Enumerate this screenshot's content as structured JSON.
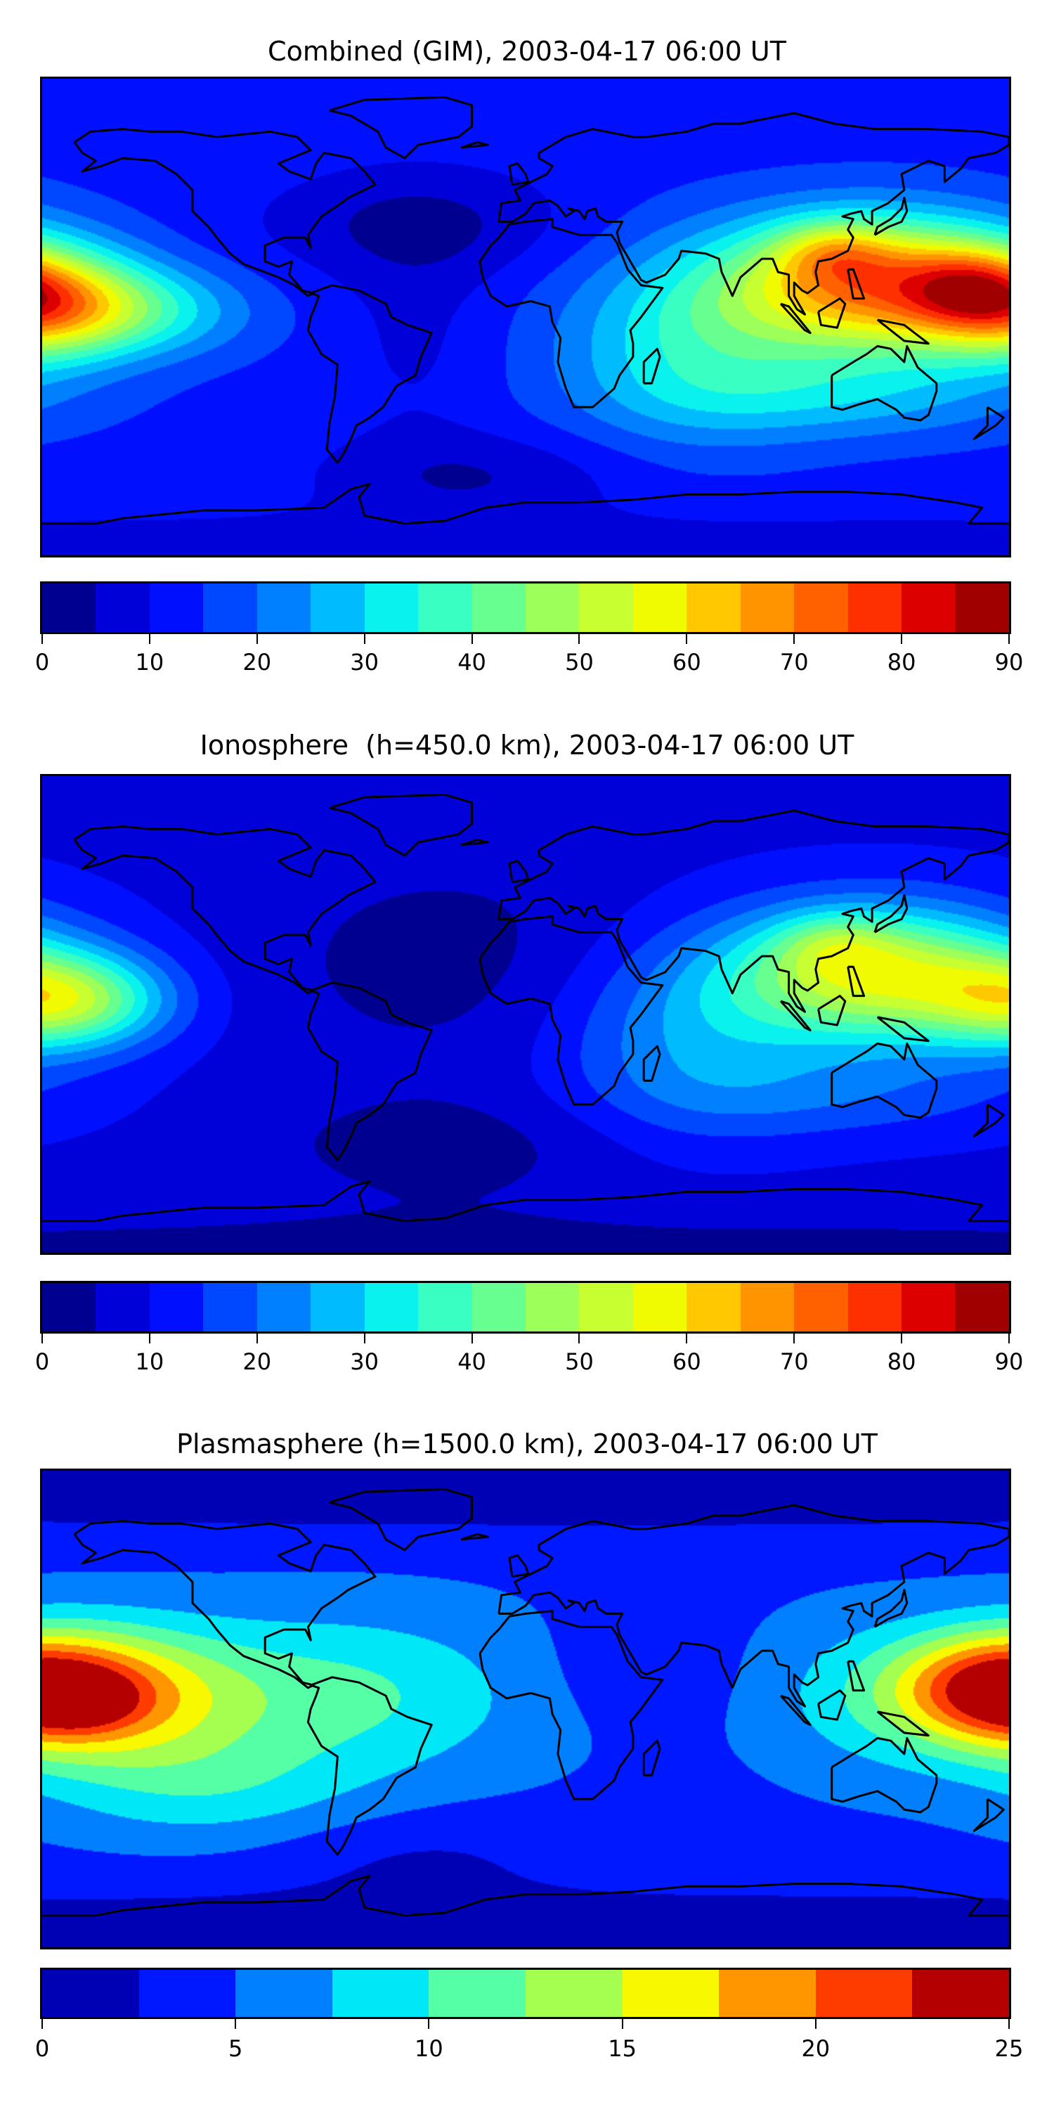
{
  "chart_data": [
    {
      "type": "heatmap",
      "subtype": "filled-contour map",
      "title": "Combined (GIM), 2003-04-17 06:00 UT",
      "xlim": [
        -180,
        180
      ],
      "ylim": [
        -90,
        90
      ],
      "levels": [
        0,
        5,
        10,
        15,
        20,
        25,
        30,
        35,
        40,
        45,
        50,
        55,
        60,
        65,
        70,
        75,
        80,
        85,
        90
      ],
      "colorbar_ticks": [
        "0",
        "10",
        "20",
        "30",
        "40",
        "50",
        "60",
        "70",
        "80",
        "90"
      ],
      "colors": [
        "#000090",
        "#0000d8",
        "#0010ff",
        "#0048ff",
        "#0080ff",
        "#00bcff",
        "#0af2ee",
        "#3affc2",
        "#66ff90",
        "#9cff5a",
        "#c8ff30",
        "#f0fa00",
        "#ffc800",
        "#ff9400",
        "#ff6000",
        "#ff3000",
        "#dc0000",
        "#a00000"
      ],
      "approx_field": {
        "base": 13,
        "features": [
          {
            "lon": 130,
            "lat": 12,
            "amp": 55,
            "slon": 40,
            "slat": 18
          },
          {
            "lon": 115,
            "lat": 25,
            "amp": 15,
            "slon": 15,
            "slat": 8
          },
          {
            "lon": 165,
            "lat": 12,
            "amp": 12,
            "slon": 15,
            "slat": 10
          },
          {
            "lon": 180,
            "lat": 5,
            "amp": 35,
            "slon": 25,
            "slat": 14
          },
          {
            "lon": -145,
            "lat": 2,
            "amp": 18,
            "slon": 30,
            "slat": 12
          },
          {
            "lon": 60,
            "lat": -10,
            "amp": 18,
            "slon": 35,
            "slat": 25
          },
          {
            "lon": 120,
            "lat": -30,
            "amp": 12,
            "slon": 50,
            "slat": 12
          },
          {
            "lon": -40,
            "lat": 35,
            "amp": -9,
            "slon": 40,
            "slat": 15
          },
          {
            "lon": -20,
            "lat": -60,
            "amp": -8,
            "slon": 40,
            "slat": 12
          },
          {
            "lon": 0,
            "lat": -88,
            "amp": -6,
            "slon": 400,
            "slat": 10
          },
          {
            "lon": -40,
            "lat": -5,
            "amp": -4,
            "slon": 20,
            "slat": 30
          }
        ]
      }
    },
    {
      "type": "heatmap",
      "subtype": "filled-contour map",
      "title": "Ionosphere  (h=450.0 km), 2003-04-17 06:00 UT",
      "xlim": [
        -180,
        180
      ],
      "ylim": [
        -90,
        90
      ],
      "levels": [
        0,
        5,
        10,
        15,
        20,
        25,
        30,
        35,
        40,
        45,
        50,
        55,
        60,
        65,
        70,
        75,
        80,
        85,
        90
      ],
      "colorbar_ticks": [
        "0",
        "10",
        "20",
        "30",
        "40",
        "50",
        "60",
        "70",
        "80",
        "90"
      ],
      "colors": [
        "#000090",
        "#0000d8",
        "#0010ff",
        "#0048ff",
        "#0080ff",
        "#00bcff",
        "#0af2ee",
        "#3affc2",
        "#66ff90",
        "#9cff5a",
        "#c8ff30",
        "#f0fa00",
        "#ffc800",
        "#ff9400",
        "#ff6000",
        "#ff3000",
        "#dc0000",
        "#a00000"
      ],
      "approx_field": {
        "base": 9,
        "features": [
          {
            "lon": 130,
            "lat": 15,
            "amp": 45,
            "slon": 40,
            "slat": 18
          },
          {
            "lon": 115,
            "lat": 27,
            "amp": 10,
            "slon": 15,
            "slat": 8
          },
          {
            "lon": 180,
            "lat": 5,
            "amp": 15,
            "slon": 25,
            "slat": 14
          },
          {
            "lon": -165,
            "lat": 5,
            "amp": 22,
            "slon": 25,
            "slat": 12
          },
          {
            "lon": 60,
            "lat": -10,
            "amp": 14,
            "slon": 35,
            "slat": 25
          },
          {
            "lon": 120,
            "lat": -30,
            "amp": 8,
            "slon": 50,
            "slat": 12
          },
          {
            "lon": -30,
            "lat": 20,
            "amp": -6,
            "slon": 50,
            "slat": 30
          },
          {
            "lon": -30,
            "lat": -50,
            "amp": -6,
            "slon": 50,
            "slat": 15
          },
          {
            "lon": 0,
            "lat": -88,
            "amp": -5,
            "slon": 400,
            "slat": 12
          }
        ]
      }
    },
    {
      "type": "heatmap",
      "subtype": "filled-contour map",
      "title": "Plasmasphere (h=1500.0 km), 2003-04-17 06:00 UT",
      "xlim": [
        -180,
        180
      ],
      "ylim": [
        -90,
        90
      ],
      "levels": [
        0,
        2.5,
        5,
        7.5,
        10,
        12.5,
        15,
        17.5,
        20,
        22.5,
        25
      ],
      "colorbar_ticks": [
        "0",
        "5",
        "10",
        "15",
        "20",
        "25"
      ],
      "colors": [
        "#0000b4",
        "#0018ff",
        "#0080ff",
        "#00e8f8",
        "#55ffa5",
        "#a5ff50",
        "#f8f800",
        "#ff9600",
        "#ff3c00",
        "#b40000"
      ],
      "approx_field": {
        "base": 4.5,
        "features": [
          {
            "lon": -160,
            "lat": 5,
            "amp": 13,
            "slon": 35,
            "slat": 18
          },
          {
            "lon": -165,
            "lat": 3,
            "amp": 5,
            "slon": 12,
            "slat": 6
          },
          {
            "lon": -70,
            "lat": 5,
            "amp": 6,
            "slon": 50,
            "slat": 22
          },
          {
            "lon": 175,
            "lat": 8,
            "amp": 12,
            "slon": 25,
            "slat": 14
          },
          {
            "lon": 130,
            "lat": 5,
            "amp": 4,
            "slon": 30,
            "slat": 20
          },
          {
            "lon": -120,
            "lat": -30,
            "amp": 4,
            "slon": 40,
            "slat": 15
          },
          {
            "lon": 10,
            "lat": -88,
            "amp": -4,
            "slon": 400,
            "slat": 15
          },
          {
            "lon": 0,
            "lat": 82,
            "amp": -3.5,
            "slon": 400,
            "slat": 12
          },
          {
            "lon": -40,
            "lat": -55,
            "amp": -2,
            "slon": 40,
            "slat": 12
          },
          {
            "lon": 40,
            "lat": 15,
            "amp": -1.5,
            "slon": 25,
            "slat": 15
          }
        ]
      }
    }
  ]
}
